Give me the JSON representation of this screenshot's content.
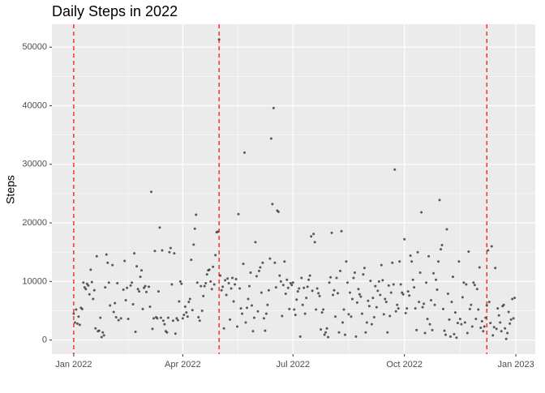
{
  "chart_data": {
    "type": "scatter",
    "title": "Daily Steps in 2022",
    "y_label": "Steps",
    "xlim": [
      -18,
      381
    ],
    "ylim": [
      -2400,
      53900
    ],
    "xticks": [
      {
        "value": 0,
        "label": "Jan 2022"
      },
      {
        "value": 90,
        "label": "Apr 2022"
      },
      {
        "value": 181,
        "label": "Jul 2022"
      },
      {
        "value": 273,
        "label": "Oct 2022"
      },
      {
        "value": 365,
        "label": "Jan 2023"
      }
    ],
    "yticks": [
      0,
      10000,
      20000,
      30000,
      40000,
      50000
    ],
    "grid": true,
    "color": "#333333",
    "vline_color": "#ff0000",
    "vlines": [
      0,
      120,
      341
    ],
    "x": [
      0,
      1,
      2,
      3,
      4,
      5,
      6,
      7,
      8,
      9,
      10,
      11,
      12,
      13,
      14,
      15,
      16,
      17,
      18,
      19,
      20,
      21,
      22,
      23,
      24,
      25,
      26,
      27,
      28,
      29,
      30,
      32,
      33,
      34,
      35,
      36,
      37,
      39,
      41,
      42,
      43,
      44,
      45,
      47,
      48,
      49,
      50,
      51,
      52,
      53,
      54,
      55,
      56,
      57,
      58,
      59,
      60,
      62,
      63,
      64,
      65,
      66,
      67,
      68,
      69,
      70,
      71,
      72,
      73,
      74,
      75,
      76,
      77,
      78,
      79,
      80,
      81,
      82,
      83,
      84,
      85,
      86,
      87,
      88,
      89,
      90,
      91,
      92,
      93,
      94,
      95,
      96,
      97,
      98,
      99,
      100,
      101,
      102,
      103,
      104,
      105,
      106,
      107,
      108,
      109,
      110,
      111,
      112,
      113,
      114,
      115,
      116,
      117,
      118,
      119,
      120,
      121,
      122,
      123,
      124,
      125,
      126,
      127,
      128,
      129,
      130,
      131,
      132,
      133,
      134,
      135,
      136,
      137,
      138,
      139,
      140,
      141,
      142,
      143,
      144,
      145,
      146,
      147,
      148,
      149,
      150,
      151,
      152,
      153,
      154,
      155,
      156,
      157,
      158,
      159,
      160,
      161,
      162,
      163,
      164,
      165,
      166,
      167,
      168,
      169,
      170,
      171,
      172,
      173,
      174,
      175,
      176,
      177,
      178,
      179,
      180,
      181,
      182,
      183,
      184,
      185,
      186,
      187,
      188,
      189,
      190,
      191,
      192,
      193,
      194,
      195,
      196,
      197,
      198,
      199,
      200,
      201,
      202,
      203,
      204,
      205,
      206,
      207,
      208,
      209,
      210,
      211,
      212,
      213,
      214,
      215,
      216,
      217,
      218,
      219,
      220,
      221,
      222,
      223,
      224,
      225,
      226,
      227,
      228,
      229,
      230,
      231,
      232,
      233,
      234,
      235,
      236,
      237,
      238,
      239,
      240,
      241,
      242,
      243,
      244,
      245,
      246,
      247,
      248,
      249,
      250,
      251,
      252,
      253,
      254,
      255,
      256,
      257,
      258,
      259,
      260,
      261,
      262,
      263,
      264,
      265,
      266,
      267,
      268,
      269,
      270,
      271,
      272,
      273,
      274,
      275,
      276,
      277,
      278,
      279,
      280,
      281,
      282,
      283,
      284,
      285,
      286,
      287,
      288,
      289,
      290,
      291,
      292,
      293,
      294,
      295,
      296,
      297,
      298,
      299,
      300,
      301,
      302,
      303,
      304,
      305,
      306,
      307,
      308,
      309,
      310,
      311,
      312,
      313,
      314,
      315,
      316,
      317,
      318,
      319,
      320,
      321,
      322,
      323,
      324,
      325,
      326,
      327,
      328,
      329,
      330,
      331,
      332,
      333,
      334,
      335,
      336,
      337,
      338,
      339,
      340,
      341,
      342,
      343,
      344,
      345,
      346,
      347,
      348,
      349,
      350,
      351,
      352,
      353,
      354,
      355,
      356,
      357,
      358,
      359,
      360,
      361,
      362,
      363,
      364
    ],
    "values": [
      4500,
      3000,
      5200,
      2800,
      4000,
      2600,
      5500,
      5300,
      9800,
      9000,
      8700,
      9600,
      9300,
      7800,
      12000,
      9900,
      7000,
      8500,
      2000,
      14300,
      1500,
      1600,
      3800,
      500,
      1300,
      800,
      9000,
      14600,
      13200,
      9800,
      5900,
      12800,
      4800,
      6300,
      3900,
      9700,
      3400,
      3700,
      8600,
      13500,
      6800,
      8900,
      3600,
      9300,
      9800,
      6100,
      14800,
      1400,
      12600,
      8700,
      8300,
      10800,
      11900,
      5300,
      8900,
      9200,
      8200,
      9100,
      5700,
      25300,
      1900,
      3700,
      15200,
      3900,
      3700,
      8300,
      19200,
      3800,
      15300,
      3300,
      2700,
      1500,
      1300,
      3800,
      15000,
      15700,
      9500,
      3300,
      14800,
      1100,
      3700,
      3400,
      6600,
      10000,
      9600,
      3700,
      4300,
      5700,
      4700,
      4000,
      6500,
      7000,
      13700,
      5100,
      16300,
      19000,
      21400,
      9800,
      3900,
      3300,
      9200,
      5000,
      7500,
      9200,
      9700,
      11200,
      11900,
      12000,
      10000,
      8700,
      12500,
      9500,
      14500,
      18400,
      18500,
      51300,
      11000,
      8500,
      9100,
      2000,
      10200,
      7700,
      10500,
      9700,
      3500,
      8800,
      10600,
      6600,
      9500,
      10400,
      2300,
      21500,
      8800,
      5400,
      4500,
      13000,
      32000,
      3000,
      5500,
      7000,
      9200,
      11500,
      5900,
      1500,
      3800,
      16700,
      10900,
      4900,
      11800,
      12400,
      8100,
      13200,
      3700,
      1600,
      4500,
      6000,
      8500,
      13900,
      34400,
      23200,
      39600,
      13200,
      9000,
      22100,
      21900,
      11000,
      10000,
      4100,
      9400,
      13400,
      7900,
      10300,
      8900,
      5300,
      9700,
      9400,
      9800,
      5200,
      4300,
      6900,
      8300,
      8800,
      600,
      10600,
      6000,
      8900,
      4500,
      7200,
      9100,
      10300,
      11000,
      17700,
      8400,
      18100,
      16700,
      5200,
      8800,
      8000,
      7500,
      1800,
      4700,
      5200,
      900,
      1300,
      2000,
      500,
      9800,
      10700,
      18300,
      7700,
      8500,
      4000,
      10600,
      8000,
      1300,
      11800,
      18600,
      3000,
      5200,
      900,
      13400,
      9800,
      4400,
      8100,
      4000,
      7000,
      10600,
      11500,
      600,
      6400,
      8700,
      7800,
      7400,
      4500,
      11200,
      12300,
      1300,
      3000,
      6700,
      5800,
      10100,
      2700,
      7200,
      3900,
      9200,
      5600,
      8400,
      10000,
      7700,
      12800,
      10200,
      4400,
      7000,
      6500,
      1300,
      9300,
      4100,
      8100,
      13200,
      9500,
      29100,
      4900,
      6000,
      5400,
      13400,
      9500,
      8100,
      7800,
      17200,
      4600,
      5400,
      8300,
      7600,
      14400,
      13400,
      10300,
      9000,
      5400,
      1700,
      15000,
      6500,
      11500,
      21800,
      5600,
      6200,
      1200,
      9800,
      3600,
      14300,
      2700,
      6800,
      1700,
      11400,
      6000,
      10300,
      8600,
      13400,
      23900,
      15500,
      16200,
      5300,
      1600,
      900,
      18900,
      7900,
      3500,
      600,
      6500,
      10800,
      1000,
      4700,
      400,
      2900,
      13400,
      3600,
      2700,
      7300,
      9800,
      3000,
      9500,
      1200,
      15100,
      5300,
      6000,
      2300,
      9800,
      9400,
      3600,
      8700,
      5200,
      12400,
      2100,
      3200,
      1500,
      2300,
      3800,
      5900,
      15300,
      6500,
      2900,
      16000,
      800,
      2200,
      12300,
      1900,
      5400,
      4200,
      3000,
      1500,
      5800,
      6000,
      2000,
      200,
      1200,
      4800,
      2800,
      3500,
      7000,
      3700,
      7200
    ]
  }
}
